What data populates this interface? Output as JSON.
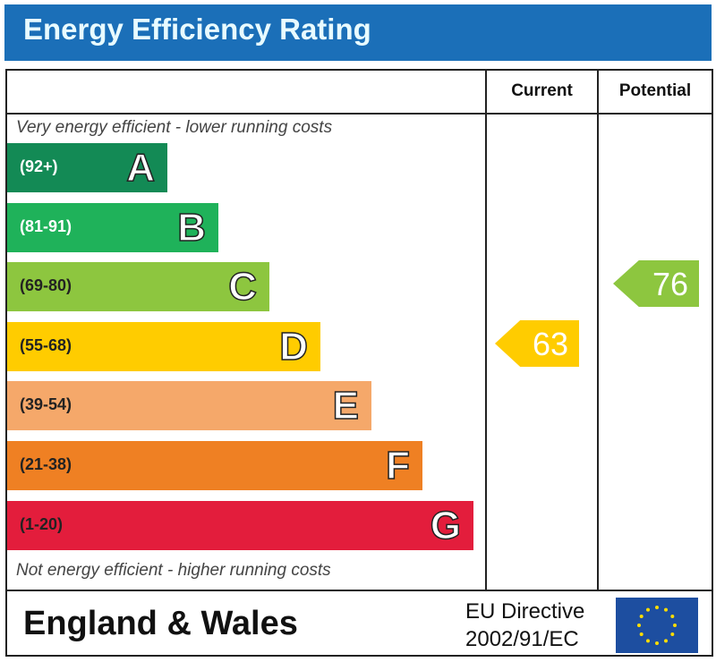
{
  "title": "Energy Efficiency Rating",
  "columns": {
    "current": "Current",
    "potential": "Potential"
  },
  "top_note": "Very energy efficient - lower running costs",
  "bottom_note": "Not energy efficient - higher running costs",
  "footer": {
    "region": "England & Wales",
    "directive_line1": "EU Directive",
    "directive_line2": "2002/91/EC",
    "flag_icon": "eu-flag-icon"
  },
  "chart_data": {
    "type": "bar",
    "categories": [
      "A",
      "B",
      "C",
      "D",
      "E",
      "F",
      "G"
    ],
    "ranges": [
      "(92+)",
      "(81-91)",
      "(69-80)",
      "(55-68)",
      "(39-54)",
      "(21-38)",
      "(1-20)"
    ],
    "colors": [
      "#138a55",
      "#1fb25a",
      "#8dc63f",
      "#ffcc00",
      "#f5a86a",
      "#ef8023",
      "#e31d3c"
    ],
    "range_text_colors": [
      "#ffffff",
      "#ffffff",
      "#222222",
      "#222222",
      "#222222",
      "#222222",
      "#222222"
    ],
    "current": {
      "value": 63,
      "band": "D",
      "color": "#ffcc00"
    },
    "potential": {
      "value": 76,
      "band": "C",
      "color": "#8dc63f"
    }
  }
}
